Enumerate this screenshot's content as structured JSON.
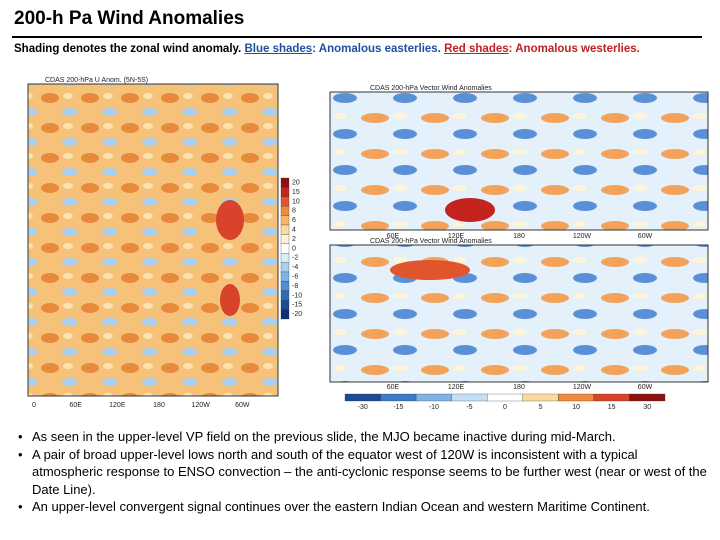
{
  "header": {
    "title": "200-h Pa Wind Anomalies"
  },
  "subtitle": {
    "lead": "Shading denotes the zonal wind anomaly. ",
    "blue_key": "Blue shades",
    "blue_text": ": Anomalous easterlies. ",
    "red_key": "Red shades",
    "red_text": ": Anomalous westerlies."
  },
  "hovmoller": {
    "title": "CDAS 200-hPa U Anom. (5N-5S)",
    "xlabels": [
      "0",
      "60E",
      "120E",
      "180",
      "120W",
      "60W"
    ],
    "colorbar": [
      "20",
      "15",
      "10",
      "8",
      "6",
      "4",
      "2",
      "0",
      "-2",
      "-4",
      "-6",
      "-8",
      "-10",
      "-15",
      "-20"
    ]
  },
  "maps": [
    {
      "title": "CDAS 200-hPa Vector Wind Anomalies"
    },
    {
      "title": "CDAS 200-hPa Vector Wind Anomalies"
    }
  ],
  "map_xlabels": [
    "60E",
    "120E",
    "180",
    "120W",
    "60W"
  ],
  "colorbar": [
    "-30",
    "-15",
    "-10",
    "-5",
    "0",
    "5",
    "10",
    "15",
    "30"
  ],
  "bullets": [
    "As seen in the upper-level VP field on the previous slide, the MJO became inactive during mid-March.",
    "A pair of broad upper-level lows north and south of the equator west of 120W is inconsistent with a typical atmospheric response to ENSO convection – the anti-cyclonic response seems to be further west (near or west of the Date Line).",
    "An upper-level convergent signal continues over the eastern Indian Ocean and western Maritime Continent."
  ]
}
